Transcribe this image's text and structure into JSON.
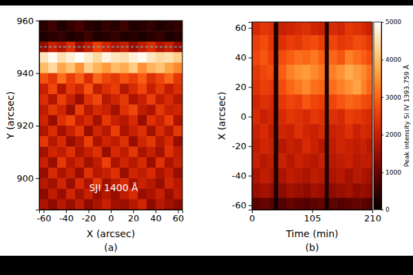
{
  "chart_data": [
    {
      "type": "heatmap",
      "panel_label": "(a)",
      "xlabel": "X (arcsec)",
      "ylabel": "Y (arcsec)",
      "xlim": [
        -64,
        64
      ],
      "ylim": [
        888,
        960
      ],
      "xticks": [
        -60,
        -40,
        -20,
        0,
        20,
        40,
        60
      ],
      "yticks": [
        900,
        920,
        940,
        960
      ],
      "zlim": [
        0,
        100
      ],
      "color": [
        "#000000",
        "#800000",
        "#ff3000",
        "#ffb030",
        "#ffffff"
      ],
      "x_edges": [
        -64,
        -56,
        -48,
        -40,
        -32,
        -24,
        -16,
        -8,
        0,
        8,
        16,
        24,
        32,
        40,
        48,
        56,
        64
      ],
      "y_edges": [
        960,
        956,
        952,
        948,
        944,
        940,
        936,
        932,
        928,
        924,
        920,
        916,
        912,
        908,
        904,
        900,
        896,
        892,
        888
      ],
      "cells": [
        [
          8,
          12,
          6,
          10,
          14,
          8,
          6,
          10,
          8,
          12,
          6,
          8,
          10,
          6,
          8,
          10
        ],
        [
          6,
          8,
          10,
          6,
          8,
          12,
          6,
          8,
          10,
          6,
          8,
          6,
          8,
          10,
          6,
          8
        ],
        [
          30,
          40,
          35,
          45,
          30,
          38,
          50,
          42,
          35,
          40,
          30,
          38,
          45,
          35,
          40,
          30
        ],
        [
          92,
          98,
          90,
          95,
          100,
          94,
          88,
          96,
          92,
          90,
          95,
          98,
          92,
          88,
          90,
          85
        ],
        [
          80,
          88,
          75,
          82,
          70,
          85,
          78,
          72,
          80,
          76,
          84,
          70,
          78,
          82,
          74,
          68
        ],
        [
          55,
          48,
          62,
          50,
          58,
          45,
          60,
          52,
          48,
          55,
          50,
          58,
          46,
          52,
          60,
          48
        ],
        [
          40,
          52,
          35,
          48,
          42,
          55,
          38,
          45,
          50,
          36,
          44,
          52,
          40,
          48,
          38,
          45
        ],
        [
          45,
          35,
          50,
          40,
          30,
          46,
          52,
          36,
          42,
          48,
          34,
          40,
          50,
          38,
          44,
          36
        ],
        [
          38,
          48,
          42,
          30,
          50,
          36,
          44,
          40,
          32,
          46,
          52,
          38,
          34,
          48,
          40,
          42
        ],
        [
          42,
          30,
          46,
          52,
          38,
          44,
          32,
          48,
          40,
          36,
          44,
          30,
          46,
          40,
          50,
          34
        ],
        [
          35,
          45,
          32,
          40,
          48,
          30,
          42,
          36,
          50,
          34,
          40,
          46,
          32,
          44,
          36,
          48
        ],
        [
          48,
          36,
          44,
          30,
          36,
          50,
          34,
          42,
          38,
          46,
          30,
          42,
          48,
          36,
          44,
          30
        ],
        [
          32,
          42,
          38,
          46,
          34,
          40,
          46,
          30,
          44,
          38,
          48,
          34,
          40,
          32,
          46,
          38
        ],
        [
          40,
          30,
          48,
          36,
          42,
          32,
          38,
          50,
          34,
          42,
          36,
          44,
          30,
          46,
          34,
          40
        ],
        [
          30,
          44,
          34,
          40,
          30,
          46,
          36,
          40,
          46,
          30,
          42,
          38,
          44,
          34,
          40,
          30
        ],
        [
          36,
          32,
          42,
          30,
          44,
          34,
          48,
          32,
          38,
          44,
          32,
          40,
          36,
          30,
          42,
          36
        ],
        [
          28,
          38,
          30,
          42,
          32,
          40,
          30,
          36,
          30,
          38,
          44,
          30,
          34,
          40,
          30,
          38
        ],
        [
          34,
          28,
          36,
          30,
          38,
          28,
          34,
          40,
          32,
          30,
          36,
          42,
          28,
          36,
          32,
          28
        ]
      ],
      "hline": {
        "value": 950,
        "color": "#66ccdd",
        "line_style": "dashed"
      },
      "annotations": [
        {
          "text": "SJI 1400 Å",
          "x": 2.5,
          "y": 896.5
        }
      ]
    },
    {
      "type": "heatmap",
      "panel_label": "(b)",
      "xlabel": "Time (min)",
      "ylabel": "X (arcsec)",
      "xlim": [
        0,
        210
      ],
      "ylim": [
        -63,
        64
      ],
      "xticks": [
        0,
        105,
        210
      ],
      "yticks": [
        -60,
        -40,
        -20,
        0,
        20,
        40,
        60
      ],
      "zlim": [
        0,
        5000
      ],
      "color": [
        "#000000",
        "#800000",
        "#ff3000",
        "#ffb030",
        "#ffffff"
      ],
      "colorbar": {
        "label": "Peak intensity Si IV 1393.759 Å",
        "ticks": [
          0,
          1000,
          2000,
          3000,
          4000,
          5000
        ]
      },
      "x_edges": [
        0,
        14,
        28,
        38,
        46,
        60,
        74,
        88,
        102,
        116,
        127,
        134,
        148,
        162,
        176,
        190,
        200,
        210
      ],
      "y_edges": [
        64,
        55,
        45,
        35,
        25,
        15,
        5,
        -5,
        -15,
        -25,
        -35,
        -45,
        -55,
        -63
      ],
      "cells": [
        [
          2200,
          2400,
          2300,
          300,
          2000,
          2100,
          2200,
          2300,
          2100,
          2000,
          300,
          2200,
          2100,
          2400,
          2300,
          2200,
          2000
        ],
        [
          2500,
          2700,
          2400,
          300,
          2300,
          2500,
          2400,
          2600,
          2700,
          2500,
          300,
          2600,
          2400,
          2500,
          2700,
          2600,
          2400
        ],
        [
          2600,
          2800,
          2500,
          300,
          2700,
          2900,
          3100,
          3000,
          3200,
          2900,
          300,
          3000,
          2800,
          3300,
          3100,
          2900,
          2700
        ],
        [
          2400,
          2600,
          2700,
          300,
          2900,
          3300,
          3500,
          3600,
          3400,
          3200,
          300,
          3300,
          3500,
          3800,
          3600,
          3400,
          3100
        ],
        [
          2300,
          2500,
          2400,
          300,
          2700,
          3000,
          3200,
          3400,
          3100,
          3000,
          300,
          3100,
          3300,
          3500,
          3700,
          3300,
          3000
        ],
        [
          2100,
          2300,
          2200,
          300,
          2400,
          2600,
          2500,
          2800,
          2600,
          2500,
          300,
          2600,
          2800,
          3000,
          2900,
          2700,
          2600
        ],
        [
          2200,
          2000,
          2100,
          300,
          2200,
          2400,
          2300,
          2200,
          2400,
          2300,
          300,
          2300,
          2200,
          2500,
          2400,
          2300,
          2200
        ],
        [
          2000,
          2200,
          1900,
          300,
          2100,
          2000,
          2300,
          2100,
          2000,
          2200,
          300,
          2000,
          2100,
          2300,
          2000,
          2200,
          2100
        ],
        [
          1900,
          2100,
          2000,
          300,
          1800,
          2000,
          1900,
          2200,
          2000,
          1800,
          300,
          1900,
          2100,
          2000,
          1900,
          2000,
          1800
        ],
        [
          2000,
          1800,
          1900,
          300,
          2000,
          1800,
          2000,
          1900,
          1800,
          2000,
          300,
          1800,
          1900,
          2000,
          1800,
          1900,
          1900
        ],
        [
          1700,
          1900,
          1800,
          300,
          1700,
          1900,
          1800,
          1700,
          1900,
          1800,
          300,
          1700,
          1800,
          1600,
          1800,
          1700,
          1600
        ],
        [
          1500,
          1600,
          1500,
          300,
          1400,
          1600,
          1500,
          1400,
          1600,
          1500,
          300,
          1400,
          1500,
          1600,
          1400,
          1500,
          1400
        ],
        [
          900,
          1000,
          900,
          200,
          800,
          1000,
          900,
          800,
          900,
          1000,
          200,
          900,
          800,
          900,
          1000,
          900,
          800
        ]
      ]
    }
  ]
}
